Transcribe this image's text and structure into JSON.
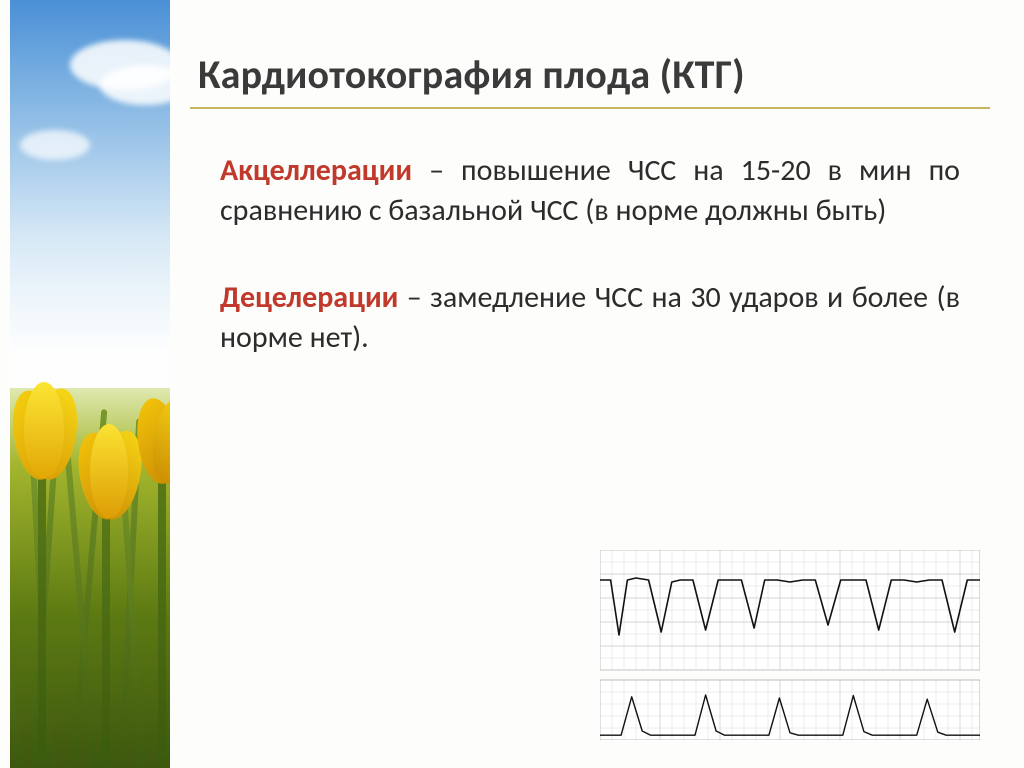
{
  "slide": {
    "title": "Кардиотокография плода  (КТГ)",
    "title_fontsize": 40,
    "title_color": "#3a3a3a",
    "title_underline_color": "#c8b560",
    "block1": {
      "term": "Акцеллерации",
      "term_color": "#c0392b",
      "text": " – повышение ЧСС на 15-20 в мин по сравнению с базальной ЧСС (в норме должны быть)"
    },
    "block2": {
      "term": "Децелерации",
      "term_color": "#c0392b",
      "text": " – замедление ЧСС на 30 ударов и более (в норме нет)."
    },
    "body_fontsize": 30,
    "body_color": "#2c2c2c",
    "background_color": "#fdfdfb"
  },
  "left_image": {
    "description": "yellow-tulips-against-blue-sky",
    "sky_gradient": [
      "#4a8fd6",
      "#6fa9de",
      "#a3c9ea",
      "#d6e8f5",
      "#eef6fb",
      "#fefefe"
    ],
    "grass_gradient": [
      "#dfe9b0",
      "#a4b62e",
      "#5c7a12",
      "#3e5710"
    ],
    "flower_color": "#f4c60b",
    "flower_shadow": "#d69a05"
  },
  "ctg_chart": {
    "type": "line",
    "panels": 2,
    "grid_color": "#c8c8c8",
    "axis_color": "#888888",
    "line_color": "#111111",
    "background_color": "#ffffff",
    "fhr": {
      "ylim": [
        60,
        180
      ],
      "baseline": 150,
      "x": [
        0,
        10,
        18,
        26,
        34,
        46,
        58,
        68,
        76,
        88,
        100,
        112,
        122,
        134,
        146,
        156,
        168,
        180,
        192,
        204,
        216,
        228,
        240,
        252,
        264,
        276,
        288,
        300,
        312,
        324,
        336,
        348,
        360
      ],
      "y": [
        150,
        150,
        95,
        150,
        152,
        150,
        98,
        148,
        150,
        150,
        100,
        150,
        150,
        150,
        102,
        150,
        150,
        148,
        150,
        150,
        105,
        150,
        150,
        150,
        100,
        150,
        150,
        148,
        150,
        150,
        98,
        150,
        150
      ]
    },
    "toco": {
      "ylim": [
        0,
        100
      ],
      "x": [
        0,
        20,
        30,
        40,
        48,
        70,
        90,
        100,
        110,
        118,
        140,
        160,
        170,
        180,
        188,
        210,
        230,
        240,
        250,
        258,
        280,
        300,
        310,
        320,
        328,
        350,
        360
      ],
      "y": [
        8,
        8,
        72,
        15,
        8,
        8,
        8,
        75,
        15,
        8,
        8,
        8,
        70,
        12,
        8,
        8,
        8,
        74,
        14,
        8,
        8,
        8,
        68,
        13,
        8,
        8,
        8
      ]
    }
  }
}
